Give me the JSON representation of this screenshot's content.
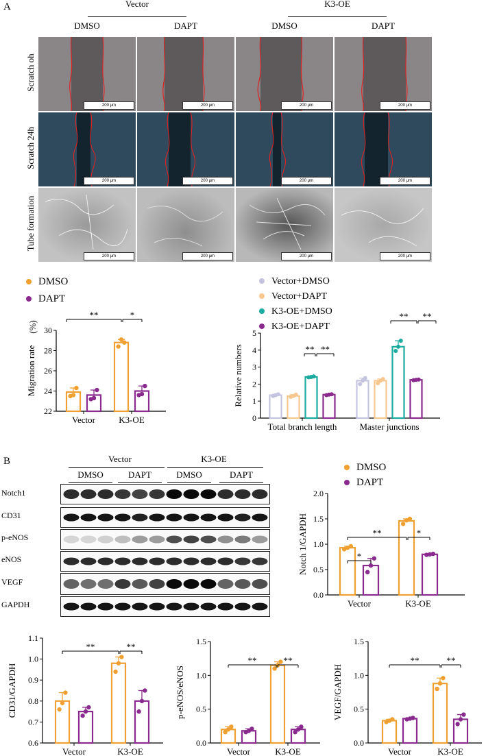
{
  "panelA": {
    "label": "A",
    "groups": [
      "Vector",
      "K3-OE"
    ],
    "treatments": [
      "DMSO",
      "DAPT",
      "DMSO",
      "DAPT"
    ],
    "rows": [
      "Scratch oh",
      "Scratch 24h",
      "Tube formation"
    ],
    "scalebar": "200 μm"
  },
  "panelB": {
    "label": "B",
    "groups": [
      "Vector",
      "K3-OE"
    ],
    "treatments": [
      "DMSO",
      "DAPT",
      "DMSO",
      "DAPT"
    ],
    "blots": [
      "Notch1",
      "CD31",
      "p-eNOS",
      "eNOS",
      "VEGF",
      "GAPDH"
    ]
  },
  "colors": {
    "dmso": "#f0a030",
    "dapt": "#8a2a8e",
    "vecdmso": "#c4c4e0",
    "vecdapt": "#f6c890",
    "k3dmso": "#1aaaa0",
    "k3dapt": "#8a2a8e"
  },
  "chart_data": [
    {
      "id": "migration",
      "type": "bar",
      "ylabel": "Migration rate",
      "yunit": "(%)",
      "categories": [
        "Vector",
        "K3-OE"
      ],
      "ylim": [
        22,
        30
      ],
      "yticks": [
        22,
        24,
        26,
        28,
        30
      ],
      "legend": [
        "DMSO",
        "DAPT"
      ],
      "series": [
        {
          "name": "DMSO",
          "values": [
            23.9,
            28.8
          ],
          "points": [
            [
              23.5,
              23.6,
              24.3
            ],
            [
              28.4,
              29.1,
              28.8
            ]
          ]
        },
        {
          "name": "DAPT",
          "values": [
            23.6,
            24.0
          ],
          "points": [
            [
              23.2,
              23.3,
              24.1
            ],
            [
              23.6,
              23.7,
              24.5
            ]
          ]
        }
      ],
      "sig": [
        {
          "label": "**"
        },
        {
          "label": "*"
        }
      ]
    },
    {
      "id": "relative",
      "type": "bar",
      "ylabel": "Relative numbers",
      "categories": [
        "Total branch length",
        "Master junctions"
      ],
      "ylim": [
        0,
        5
      ],
      "yticks": [
        0,
        1,
        2,
        3,
        4,
        5
      ],
      "legend": [
        "Vector+DMSO",
        "Vector+DAPT",
        "K3-OE+DMSO",
        "K3-OE+DAPT"
      ],
      "series": [
        {
          "name": "Vector+DMSO",
          "values": [
            1.35,
            2.2
          ],
          "points": [
            [
              1.3,
              1.35,
              1.4
            ],
            [
              2.0,
              2.2,
              2.35
            ]
          ]
        },
        {
          "name": "Vector+DAPT",
          "values": [
            1.3,
            2.2
          ],
          "points": [
            [
              1.25,
              1.3,
              1.38
            ],
            [
              2.05,
              2.2,
              2.3
            ]
          ]
        },
        {
          "name": "K3-OE+DMSO",
          "values": [
            2.42,
            4.2
          ],
          "points": [
            [
              2.4,
              2.42,
              2.45
            ],
            [
              3.95,
              4.2,
              4.55
            ]
          ]
        },
        {
          "name": "K3-OE+DAPT",
          "values": [
            1.38,
            2.25
          ],
          "points": [
            [
              1.35,
              1.38,
              1.4
            ],
            [
              2.23,
              2.25,
              2.27
            ]
          ]
        }
      ],
      "sig": [
        {
          "label": "**"
        },
        {
          "label": "**"
        },
        {
          "label": "**"
        },
        {
          "label": "**"
        }
      ]
    },
    {
      "id": "notch1",
      "type": "bar",
      "ylabel": "Notch 1/GAPDH",
      "categories": [
        "Vector",
        "K3-OE"
      ],
      "ylim": [
        0,
        2.0
      ],
      "yticks": [
        "0.0",
        "0.5",
        "1.0",
        "1.5",
        "2.0"
      ],
      "legend": [
        "DMSO",
        "DAPT"
      ],
      "series": [
        {
          "name": "DMSO",
          "values": [
            0.93,
            1.46
          ],
          "points": [
            [
              0.9,
              0.93,
              0.96
            ],
            [
              1.4,
              1.47,
              1.5
            ]
          ]
        },
        {
          "name": "DAPT",
          "values": [
            0.58,
            0.8
          ],
          "points": [
            [
              0.45,
              0.58,
              0.72
            ],
            [
              0.79,
              0.8,
              0.81
            ]
          ]
        }
      ],
      "sig": [
        {
          "label": "*"
        },
        {
          "label": "**"
        },
        {
          "label": "*"
        }
      ]
    },
    {
      "id": "cd31",
      "type": "bar",
      "ylabel": "CD31/GAPDH",
      "categories": [
        "Vector",
        "K3-OE"
      ],
      "ylim": [
        0.6,
        1.1
      ],
      "yticks": [
        "0.6",
        "0.7",
        "0.8",
        "0.9",
        "1.0",
        "1.1"
      ],
      "series": [
        {
          "name": "DMSO",
          "values": [
            0.8,
            0.98
          ],
          "points": [
            [
              0.76,
              0.79,
              0.84
            ],
            [
              0.94,
              0.98,
              1.01
            ]
          ]
        },
        {
          "name": "DAPT",
          "values": [
            0.75,
            0.8
          ],
          "points": [
            [
              0.73,
              0.75,
              0.77
            ],
            [
              0.75,
              0.8,
              0.85
            ]
          ]
        }
      ],
      "sig": [
        {
          "label": "**"
        },
        {
          "label": "**"
        }
      ]
    },
    {
      "id": "peNOS",
      "type": "bar",
      "ylabel": "p-eNOS/eNOS",
      "categories": [
        "Vector",
        "K3-OE"
      ],
      "ylim": [
        0,
        1.5
      ],
      "yticks": [
        "0.0",
        "0.5",
        "1.0",
        "1.5"
      ],
      "series": [
        {
          "name": "DMSO",
          "values": [
            0.2,
            1.15
          ],
          "points": [
            [
              0.16,
              0.2,
              0.24
            ],
            [
              1.1,
              1.15,
              1.2
            ]
          ]
        },
        {
          "name": "DAPT",
          "values": [
            0.18,
            0.2
          ],
          "points": [
            [
              0.16,
              0.18,
              0.21
            ],
            [
              0.16,
              0.2,
              0.24
            ]
          ]
        }
      ],
      "sig": [
        {
          "label": "**"
        },
        {
          "label": "**"
        }
      ]
    },
    {
      "id": "vegf",
      "type": "bar",
      "ylabel": "VEGF/GAPDH",
      "categories": [
        "Vector",
        "K3-OE"
      ],
      "ylim": [
        0,
        1.5
      ],
      "yticks": [
        "0.0",
        "0.5",
        "1.0",
        "1.5"
      ],
      "series": [
        {
          "name": "DMSO",
          "values": [
            0.33,
            0.88
          ],
          "points": [
            [
              0.31,
              0.33,
              0.35
            ],
            [
              0.8,
              0.88,
              0.96
            ]
          ]
        },
        {
          "name": "DAPT",
          "values": [
            0.36,
            0.35
          ],
          "points": [
            [
              0.35,
              0.36,
              0.37
            ],
            [
              0.28,
              0.35,
              0.42
            ]
          ]
        }
      ],
      "sig": [
        {
          "label": "**"
        },
        {
          "label": "**"
        }
      ]
    }
  ]
}
